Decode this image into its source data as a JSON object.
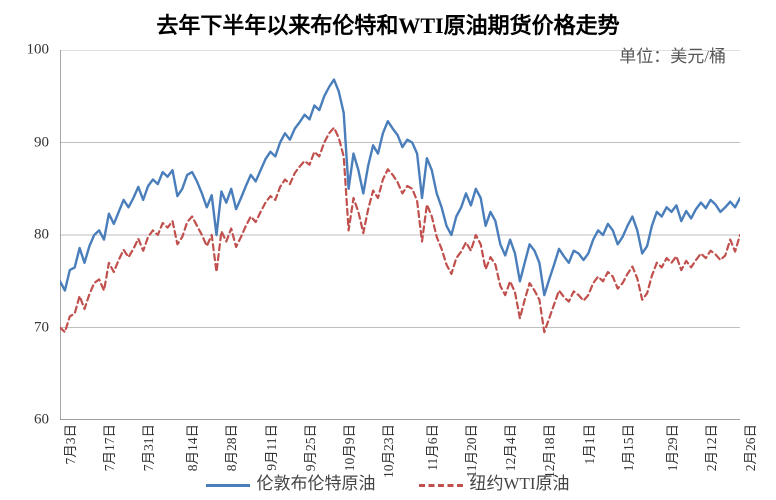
{
  "chart": {
    "type": "line",
    "title": "去年下半年以来布伦特和WTI原油期货价格走势",
    "unit_label": "单位：美元/桶",
    "title_fontsize": 22,
    "unit_fontsize": 17,
    "axis_fontsize": 15,
    "x_fontsize": 13.5,
    "legend_fontsize": 17,
    "background_color": "#ffffff",
    "axis_color": "#808080",
    "grid_color": "#bfbfbf",
    "text_color": "#333333",
    "ylim": [
      60,
      100
    ],
    "ytick_step": 10,
    "yticks": [
      60,
      70,
      80,
      90,
      100
    ],
    "x_categories": [
      "7月3日",
      "7月17日",
      "7月31日",
      "8月14日",
      "8月28日",
      "9月11日",
      "9月25日",
      "10月9日",
      "10月23日",
      "11月6日",
      "11月20日",
      "12月4日",
      "12月18日",
      "1月1日",
      "1月15日",
      "1月29日",
      "2月12日",
      "2月26日"
    ],
    "series": [
      {
        "name": "伦敦布伦特原油",
        "color": "#4a7ebb",
        "line_width": 2.4,
        "dash": "none",
        "data": [
          75.0,
          74.0,
          76.2,
          76.5,
          78.6,
          77.0,
          78.8,
          80.0,
          80.5,
          79.5,
          82.3,
          81.2,
          82.5,
          83.8,
          83.0,
          84.0,
          85.2,
          83.8,
          85.3,
          86.0,
          85.5,
          86.8,
          86.3,
          87.0,
          84.2,
          85.0,
          86.5,
          86.8,
          85.8,
          84.5,
          83.0,
          84.3,
          80.0,
          84.7,
          83.5,
          85.0,
          82.8,
          84.0,
          85.3,
          86.5,
          85.8,
          87.0,
          88.2,
          89.0,
          88.5,
          90.0,
          91.0,
          90.3,
          91.5,
          92.2,
          93.0,
          92.5,
          94.0,
          93.5,
          95.0,
          96.0,
          96.8,
          95.5,
          93.2,
          85.0,
          88.8,
          87.0,
          84.5,
          87.5,
          89.7,
          88.8,
          91.0,
          92.3,
          91.5,
          90.8,
          89.5,
          90.3,
          90.0,
          88.8,
          84.0,
          88.3,
          87.0,
          84.5,
          83.0,
          81.0,
          80.0,
          82.0,
          83.0,
          84.5,
          83.2,
          85.0,
          84.0,
          81.0,
          82.5,
          81.5,
          79.0,
          77.8,
          79.5,
          78.0,
          75.0,
          77.0,
          79.0,
          78.3,
          77.0,
          73.5,
          75.2,
          76.8,
          78.5,
          77.7,
          77.0,
          78.3,
          78.0,
          77.3,
          78.0,
          79.5,
          80.5,
          80.0,
          81.2,
          80.5,
          79.0,
          79.8,
          81.0,
          82.0,
          80.5,
          78.0,
          78.8,
          81.0,
          82.5,
          82.0,
          83.0,
          82.5,
          83.2,
          81.5,
          82.6,
          81.8,
          82.8,
          83.5,
          82.9,
          83.8,
          83.3,
          82.5,
          83.0,
          83.6,
          83.0,
          84.0
        ]
      },
      {
        "name": "纽约WTI原油",
        "color": "#c0504d",
        "line_width": 2.2,
        "dash": "6,4",
        "data": [
          70.0,
          69.5,
          71.2,
          71.5,
          73.4,
          72.0,
          73.6,
          74.8,
          75.2,
          74.0,
          77.0,
          76.0,
          77.3,
          78.4,
          77.6,
          78.5,
          79.6,
          78.3,
          79.8,
          80.5,
          80.0,
          81.3,
          80.8,
          81.5,
          79.0,
          79.8,
          81.4,
          82.0,
          81.0,
          80.0,
          78.8,
          80.0,
          76.0,
          80.4,
          79.3,
          80.7,
          78.7,
          79.8,
          81.0,
          82.0,
          81.4,
          82.5,
          83.5,
          84.2,
          83.8,
          85.2,
          86.0,
          85.5,
          86.7,
          87.4,
          88.0,
          87.6,
          89.0,
          88.5,
          90.0,
          91.0,
          91.6,
          90.5,
          88.5,
          80.5,
          84.0,
          82.5,
          80.2,
          82.8,
          84.8,
          84.0,
          86.0,
          87.1,
          86.5,
          85.7,
          84.5,
          85.3,
          85.0,
          83.7,
          79.3,
          83.3,
          82.0,
          79.8,
          78.5,
          76.8,
          75.8,
          77.5,
          78.2,
          79.2,
          78.3,
          80.0,
          79.0,
          76.3,
          77.6,
          76.8,
          74.5,
          73.5,
          75.0,
          73.8,
          71.0,
          73.0,
          74.8,
          74.0,
          73.0,
          69.5,
          71.0,
          72.5,
          74.0,
          73.3,
          72.8,
          73.9,
          73.5,
          72.9,
          73.5,
          74.8,
          75.5,
          75.0,
          76.0,
          75.5,
          74.2,
          74.8,
          75.8,
          76.6,
          75.3,
          73.0,
          73.7,
          75.6,
          77.0,
          76.5,
          77.5,
          77.0,
          77.7,
          76.2,
          77.2,
          76.5,
          77.3,
          78.0,
          77.5,
          78.3,
          77.9,
          77.3,
          77.8,
          79.5,
          78.2,
          80.0
        ]
      }
    ],
    "legend": {
      "position": "bottom",
      "items": [
        "伦敦布伦特原油",
        "纽约WTI原油"
      ]
    }
  }
}
